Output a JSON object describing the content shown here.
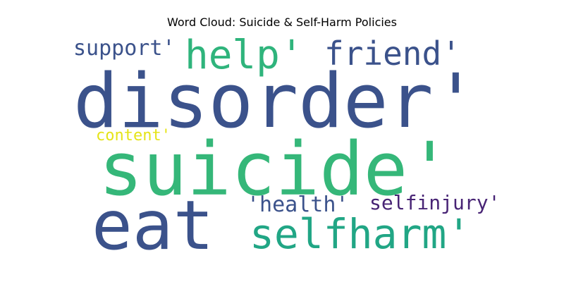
{
  "chart_data": {
    "type": "wordcloud",
    "title": "Word Cloud: Suicide & Self-Harm Policies",
    "words": [
      {
        "text": "disorder'",
        "weight": 100,
        "color": "#3b528b"
      },
      {
        "text": "suicide'",
        "weight": 96,
        "color": "#35b779"
      },
      {
        "text": "eat",
        "weight": 86,
        "color": "#3b528b"
      },
      {
        "text": "selfharm'",
        "weight": 52,
        "color": "#21a685"
      },
      {
        "text": "help'",
        "weight": 50,
        "color": "#2fb47c"
      },
      {
        "text": "friend'",
        "weight": 44,
        "color": "#3b528b"
      },
      {
        "text": "support'",
        "weight": 30,
        "color": "#3b528b"
      },
      {
        "text": "'health'",
        "weight": 28,
        "color": "#3b528b"
      },
      {
        "text": "selfinjury'",
        "weight": 26,
        "color": "#482475"
      },
      {
        "text": "content'",
        "weight": 22,
        "color": "#e5e419"
      }
    ]
  }
}
